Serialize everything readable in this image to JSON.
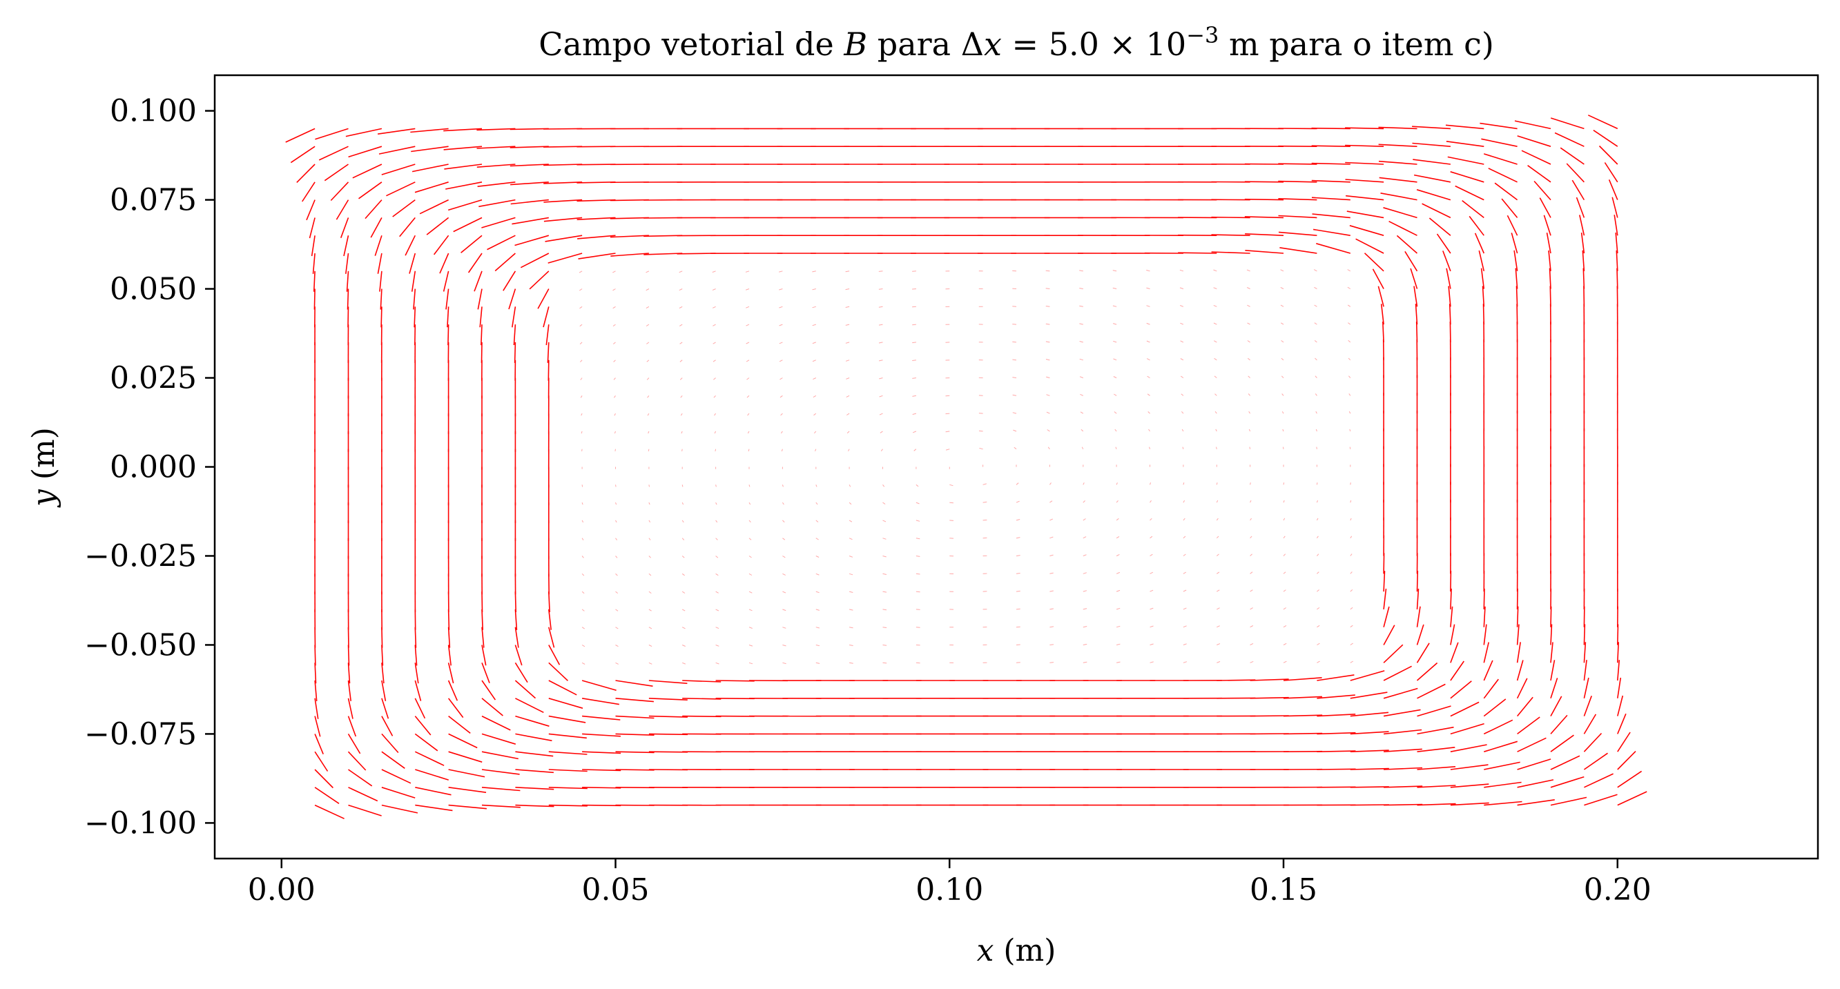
{
  "chart_data": {
    "type": "quiver",
    "title": {
      "prefix": "Campo vetorial de ",
      "var_b": "B",
      "mid": " para ",
      "delta": "Δ",
      "var_x": "x",
      "eq": " = 5.0 × 10",
      "exp": "−3",
      "suffix": " m para o item c)"
    },
    "xlabel": {
      "var": "x",
      "unit": " (m)"
    },
    "ylabel": {
      "var": "y",
      "unit": " (m)"
    },
    "xlim": [
      -0.01,
      0.23
    ],
    "ylim": [
      -0.11,
      0.11
    ],
    "xticks": [
      {
        "value": 0.0,
        "label": "0.00"
      },
      {
        "value": 0.05,
        "label": "0.05"
      },
      {
        "value": 0.1,
        "label": "0.10"
      },
      {
        "value": 0.15,
        "label": "0.15"
      },
      {
        "value": 0.2,
        "label": "0.20"
      }
    ],
    "yticks": [
      {
        "value": 0.1,
        "label": "0.100"
      },
      {
        "value": 0.075,
        "label": "0.075"
      },
      {
        "value": 0.05,
        "label": "0.050"
      },
      {
        "value": 0.025,
        "label": "0.025"
      },
      {
        "value": 0.0,
        "label": "0.000"
      },
      {
        "value": -0.025,
        "label": "−0.025"
      },
      {
        "value": -0.05,
        "label": "−0.050"
      },
      {
        "value": -0.075,
        "label": "−0.075"
      },
      {
        "value": -0.1,
        "label": "−0.100"
      }
    ],
    "grid": false,
    "arrow_color": "#ff0000",
    "field": {
      "x_range": [
        0.005,
        0.2
      ],
      "y_range": [
        -0.095,
        0.095
      ],
      "spacing": 0.005,
      "core_outer": {
        "x": [
          0.005,
          0.2
        ],
        "y": [
          -0.095,
          0.095
        ]
      },
      "core_inner": {
        "x": [
          0.04,
          0.165
        ],
        "y": [
          -0.06,
          0.06
        ]
      },
      "circulation": "counterclockwise"
    }
  }
}
